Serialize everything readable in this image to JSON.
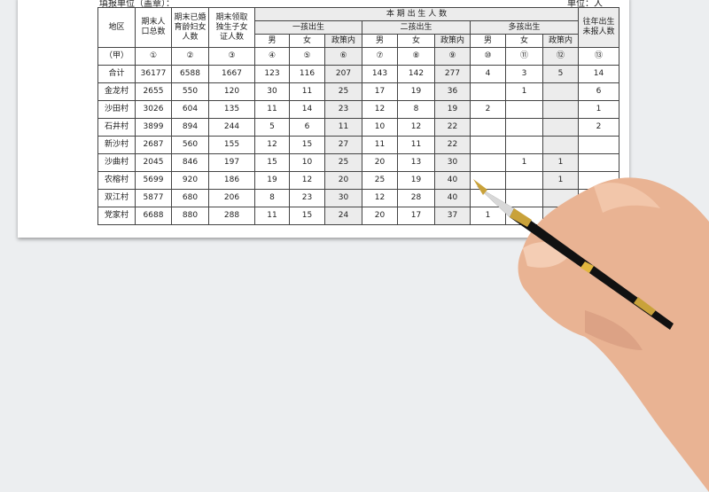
{
  "header": {
    "unit_label": "填报单位（盖章）：",
    "unit_right": "单位：人"
  },
  "columns": {
    "region": "地区",
    "pop": "期末人口总数",
    "women": "期末已婚育龄妇女人数",
    "onechild": "期末领取独生子女证人数",
    "births": "本 期 出 生 人 数",
    "first": "一孩出生",
    "second": "二孩出生",
    "multi": "多孩出生",
    "male": "男",
    "female": "女",
    "policy": "政策内",
    "unreported": "往年出生未报人数"
  },
  "index_row": [
    "（甲）",
    "①",
    "②",
    "③",
    "④",
    "⑤",
    "⑥",
    "⑦",
    "⑧",
    "⑨",
    "⑩",
    "⑪",
    "⑫",
    "⑬"
  ],
  "rows": [
    [
      "合计",
      "36177",
      "6588",
      "1667",
      "123",
      "116",
      "207",
      "143",
      "142",
      "277",
      "4",
      "3",
      "5",
      "14"
    ],
    [
      "金龙村",
      "2655",
      "550",
      "120",
      "30",
      "11",
      "25",
      "17",
      "19",
      "36",
      "",
      "1",
      "",
      "6"
    ],
    [
      "沙田村",
      "3026",
      "604",
      "135",
      "11",
      "14",
      "23",
      "12",
      "8",
      "19",
      "2",
      "",
      "",
      "1"
    ],
    [
      "石井村",
      "3899",
      "894",
      "244",
      "5",
      "6",
      "11",
      "10",
      "12",
      "22",
      "",
      "",
      "",
      "2"
    ],
    [
      "新沙村",
      "2687",
      "560",
      "155",
      "12",
      "15",
      "27",
      "11",
      "11",
      "22",
      "",
      "",
      "",
      ""
    ],
    [
      "沙曲村",
      "2045",
      "846",
      "197",
      "15",
      "10",
      "25",
      "20",
      "13",
      "30",
      "",
      "1",
      "1",
      ""
    ],
    [
      "农榕村",
      "5699",
      "920",
      "186",
      "19",
      "12",
      "20",
      "25",
      "19",
      "40",
      "",
      "",
      "1",
      ""
    ],
    [
      "双江村",
      "5877",
      "680",
      "206",
      "8",
      "23",
      "30",
      "12",
      "28",
      "40",
      "",
      "",
      "",
      ""
    ],
    [
      "党家村",
      "6688",
      "880",
      "288",
      "11",
      "15",
      "24",
      "20",
      "17",
      "37",
      "1",
      "",
      "",
      ""
    ]
  ]
}
